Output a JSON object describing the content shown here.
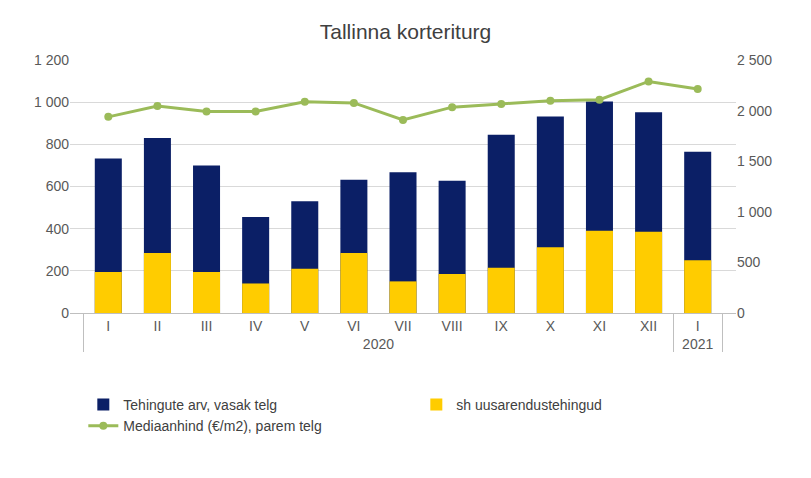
{
  "chart_data": {
    "type": "bar",
    "title": "Tallinna korteriturg",
    "categories": [
      "I",
      "II",
      "III",
      "IV",
      "V",
      "VI",
      "VII",
      "VIII",
      "IX",
      "X",
      "XI",
      "XII",
      "I"
    ],
    "category_groups": [
      "2020",
      "2020",
      "2020",
      "2020",
      "2020",
      "2020",
      "2020",
      "2020",
      "2020",
      "2020",
      "2020",
      "2020",
      "2021"
    ],
    "stacked": false,
    "grid": true,
    "legend": "bottom",
    "series": [
      {
        "name": "Tehingute arv, vasak telg",
        "type": "bar",
        "color": "#0b1f66",
        "values": [
          733,
          830,
          700,
          455,
          530,
          632,
          668,
          627,
          845,
          932,
          1003,
          952,
          765
        ]
      },
      {
        "name": "sh uusarendustehingud",
        "type": "bar",
        "color": "#ffcc00",
        "values": [
          195,
          285,
          195,
          140,
          210,
          285,
          150,
          185,
          215,
          312,
          390,
          385,
          250
        ]
      },
      {
        "name": "Mediaanhind (€/m2), parem telg",
        "type": "line",
        "axis": "y2",
        "color": "#9bbb59",
        "marker": "circle",
        "values": [
          1938,
          2045,
          1992,
          1992,
          2087,
          2076,
          1907,
          2034,
          2066,
          2097,
          2108,
          2288,
          2214
        ]
      }
    ],
    "ylim": [
      0,
      1200
    ],
    "yticks": [
      0,
      200,
      400,
      600,
      800,
      {
        "value": 1000,
        "label": "1 000"
      },
      {
        "value": 1200,
        "label": "1 200"
      }
    ],
    "y2lim": [
      0,
      2500
    ],
    "y2ticks": [
      0,
      500,
      {
        "value": 1000,
        "label": "1 000"
      },
      {
        "value": 1500,
        "label": "1 500"
      },
      {
        "value": 2000,
        "label": "2 000"
      },
      {
        "value": 2500,
        "label": "2 500"
      }
    ]
  }
}
